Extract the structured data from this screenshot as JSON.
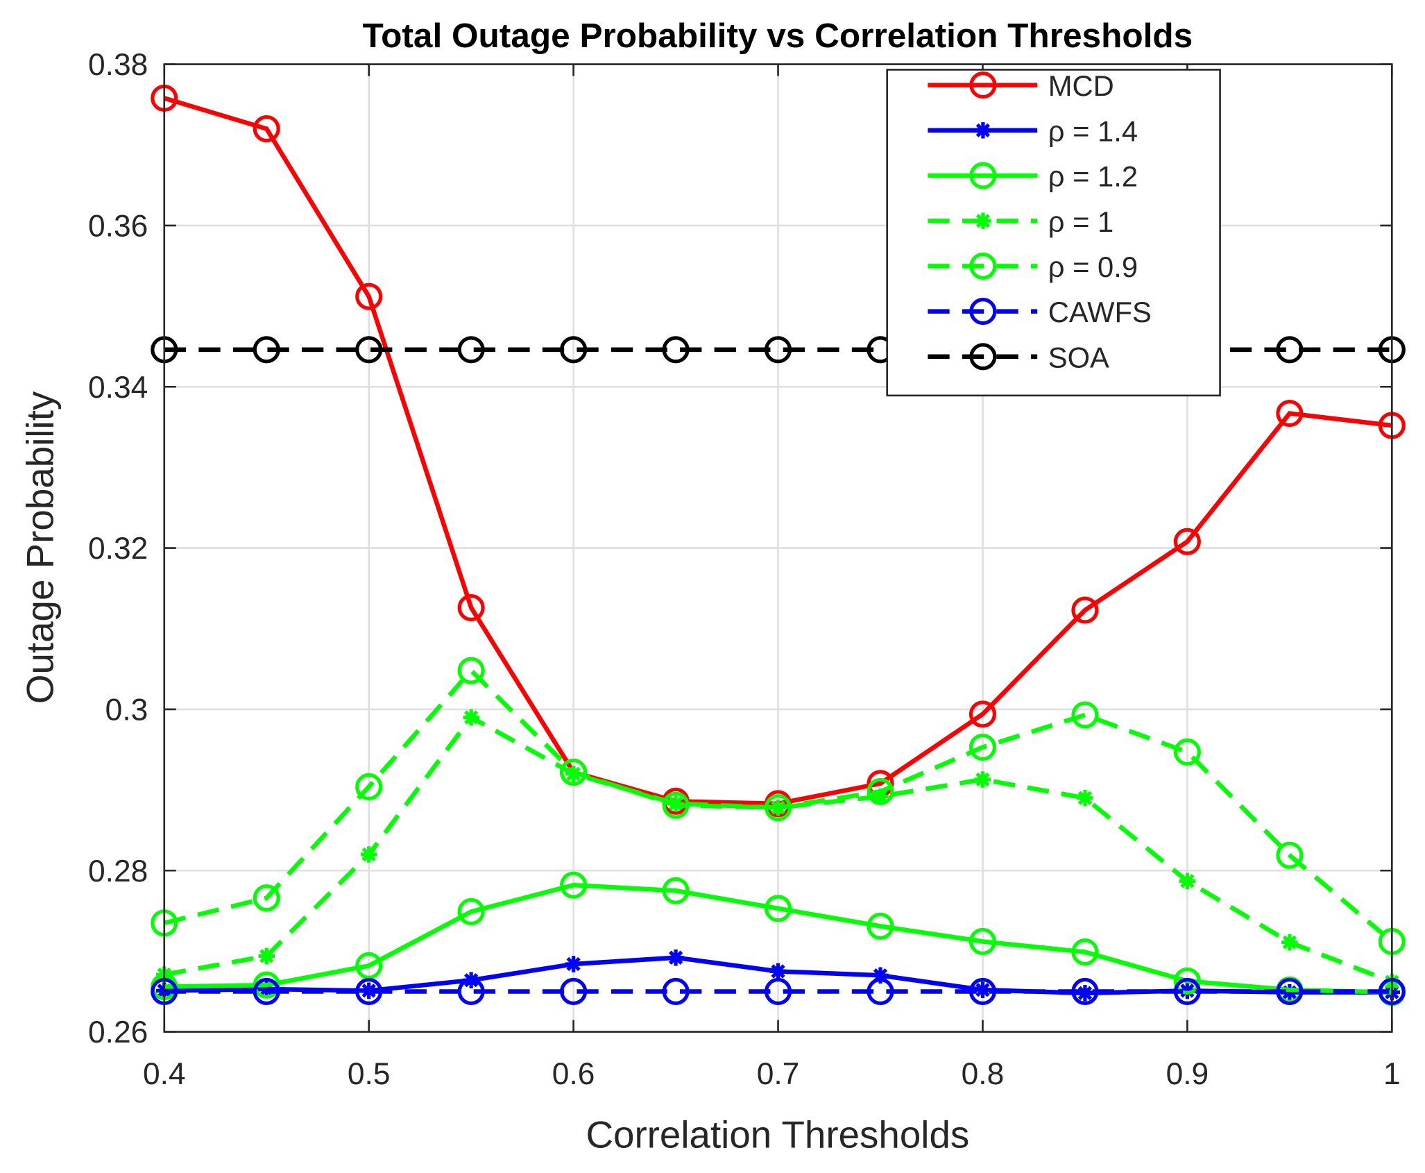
{
  "chart_data": {
    "type": "line",
    "title": "Total Outage Probability vs Correlation Thresholds",
    "xlabel": "Correlation Thresholds",
    "ylabel": "Outage Probability",
    "xlim": [
      0.4,
      1
    ],
    "ylim": [
      0.26,
      0.38
    ],
    "grid": true,
    "legend_position": "top-right",
    "x": [
      0.4,
      0.45,
      0.5,
      0.55,
      0.6,
      0.65,
      0.7,
      0.75,
      0.8,
      0.85,
      0.9,
      0.95,
      1
    ],
    "xticks": [
      0.4,
      0.5,
      0.6,
      0.7,
      0.8,
      0.9,
      1
    ],
    "xtick_labels": [
      "0.4",
      "0.5",
      "0.6",
      "0.7",
      "0.8",
      "0.9",
      "1"
    ],
    "yticks": [
      0.26,
      0.28,
      0.3,
      0.32,
      0.34,
      0.36,
      0.38
    ],
    "ytick_labels": [
      "0.26",
      "0.28",
      "0.3",
      "0.32",
      "0.34",
      "0.36",
      "0.38"
    ],
    "series": [
      {
        "name": "MCD",
        "color": "#ff0000",
        "dash": false,
        "marker": "circle",
        "values": [
          0.3758,
          0.372,
          0.3512,
          0.3126,
          0.2922,
          0.2886,
          0.2883,
          0.2908,
          0.2994,
          0.3123,
          0.3208,
          0.3367,
          0.3352
        ]
      },
      {
        "name": "ρ = 1.4",
        "color": "#0000ff",
        "dash": false,
        "marker": "star",
        "values": [
          0.2651,
          0.2653,
          0.2651,
          0.2664,
          0.2684,
          0.2692,
          0.2675,
          0.267,
          0.2652,
          0.2648,
          0.2651,
          0.2649,
          0.2649
        ]
      },
      {
        "name": "ρ = 1.2",
        "color": "#00ff00",
        "dash": false,
        "marker": "circle",
        "values": [
          0.2656,
          0.2658,
          0.2682,
          0.2749,
          0.2782,
          0.2775,
          0.2753,
          0.2731,
          0.2712,
          0.2699,
          0.2663,
          0.2652,
          0.2649
        ]
      },
      {
        "name": "ρ = 1",
        "color": "#00ff00",
        "dash": true,
        "marker": "star",
        "values": [
          0.2671,
          0.2694,
          0.282,
          0.299,
          0.292,
          0.2883,
          0.2878,
          0.2892,
          0.2913,
          0.289,
          0.2787,
          0.2711,
          0.2662
        ]
      },
      {
        "name": "ρ = 0.9",
        "color": "#00ff00",
        "dash": true,
        "marker": "circle",
        "values": [
          0.2735,
          0.2766,
          0.2904,
          0.3048,
          0.2922,
          0.2881,
          0.2878,
          0.2898,
          0.2953,
          0.2993,
          0.2947,
          0.2819,
          0.2712
        ]
      },
      {
        "name": "CAWFS",
        "color": "#0000ff",
        "dash": true,
        "marker": "circle",
        "values": [
          0.265,
          0.265,
          0.265,
          0.265,
          0.265,
          0.265,
          0.265,
          0.265,
          0.265,
          0.265,
          0.265,
          0.265,
          0.265
        ]
      },
      {
        "name": "SOA",
        "color": "#000000",
        "dash": true,
        "marker": "circle",
        "values": [
          0.3446,
          0.3446,
          0.3446,
          0.3446,
          0.3446,
          0.3446,
          0.3446,
          0.3446,
          0.3446,
          0.3446,
          0.3446,
          0.3446,
          0.3446
        ]
      }
    ]
  }
}
